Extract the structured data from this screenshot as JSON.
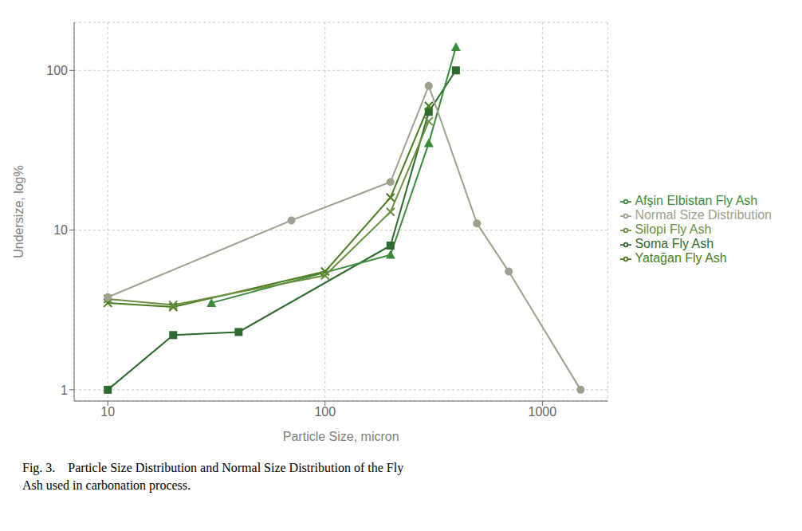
{
  "chart_data": {
    "type": "line",
    "xlabel": "Particle Size, micron",
    "ylabel": "Undersize, log%",
    "annotations": [
      "Fig. 3.    Particle Size Distribution and Normal Size Distribution of the Fly",
      "Ash used in carbonation process."
    ],
    "log": true,
    "grid": true,
    "legend": "right",
    "xlim": [
      7,
      2000
    ],
    "ylim": [
      0.85,
      200
    ],
    "xticks": [
      10,
      100,
      1000
    ],
    "yticks": [
      1,
      10,
      100
    ],
    "series": [
      {
        "name": "Soma Fly Ash",
        "color": "#2d6a2d",
        "marker": "square",
        "x": [
          10,
          20,
          40,
          200,
          300,
          400
        ],
        "values": [
          1.0,
          2.2,
          2.3,
          8.0,
          55,
          100
        ]
      },
      {
        "name": "Afşin Elbistan Fly Ash",
        "color": "#3a8c3a",
        "marker": "triangle",
        "x": [
          30,
          200,
          300,
          400
        ],
        "values": [
          3.5,
          7.0,
          35,
          140
        ]
      },
      {
        "name": "Yatağan Fly Ash",
        "color": "#4a7c20",
        "marker": "cross",
        "x": [
          10,
          20,
          100,
          200,
          300
        ],
        "values": [
          3.5,
          3.3,
          5.5,
          16,
          60
        ]
      },
      {
        "name": "Silopi Fly Ash",
        "color": "#6b8f40",
        "marker": "cross",
        "x": [
          10,
          20,
          100,
          200,
          300
        ],
        "values": [
          3.7,
          3.4,
          5.2,
          13,
          48
        ]
      },
      {
        "name": "Normal Size Distribution",
        "color": "#a0a090",
        "marker": "circle",
        "x": [
          10,
          70,
          200,
          300,
          500,
          700,
          1500
        ],
        "values": [
          3.8,
          11.5,
          20.0,
          80,
          11.0,
          5.5,
          1.0
        ]
      }
    ]
  }
}
